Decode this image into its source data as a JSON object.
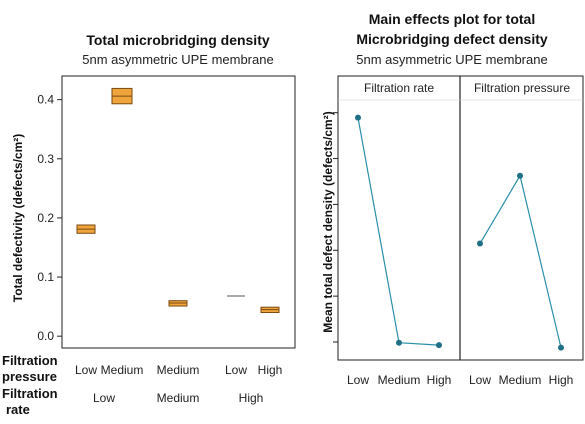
{
  "chart_data": [
    {
      "type": "box",
      "title": "Total microbridging density",
      "subtitle": "5nm asymmetric UPE membrane",
      "ylabel": "Total defectivity (defects/cm²)",
      "ylim": [
        0,
        0.42
      ],
      "yticks": [
        "0.0",
        "0.1",
        "0.2",
        "0.3",
        "0.4"
      ],
      "ytick_values": [
        0,
        0.1,
        0.2,
        0.3,
        0.4
      ],
      "row_labels": {
        "pressure": [
          "Filtration",
          "pressure"
        ],
        "rate": [
          "Filtration",
          "rate"
        ]
      },
      "pressure_labels": [
        "Low",
        "Medium",
        "Medium",
        "Low",
        "High"
      ],
      "rate_labels": [
        "Low",
        "Medium",
        "High"
      ],
      "boxes": [
        {
          "pressure": "Low",
          "rate": "Low",
          "q1": 0.174,
          "median": 0.181,
          "q3": 0.188
        },
        {
          "pressure": "Medium",
          "rate": "Low",
          "q1": 0.393,
          "median": 0.406,
          "q3": 0.419
        },
        {
          "pressure": "Medium",
          "rate": "Medium",
          "q1": 0.051,
          "median": 0.056,
          "q3": 0.06
        },
        {
          "pressure": "Low",
          "rate": "High",
          "q1": 0.068,
          "median": 0.068,
          "q3": 0.068
        },
        {
          "pressure": "High",
          "rate": "High",
          "q1": 0.04,
          "median": 0.045,
          "q3": 0.049
        }
      ],
      "box_color": "#f0a43c",
      "box_edge": "#7a4a10"
    },
    {
      "type": "line",
      "title_lines": [
        "Main effects plot for total",
        "Microbridging defect density"
      ],
      "subtitle": "5nm asymmetric UPE membrane",
      "ylabel": "Mean total defect density (defects/cm²)",
      "line_color": "#2a8fa8",
      "panels": [
        {
          "name": "Filtration rate",
          "categories": [
            "Low",
            "Medium",
            "High"
          ],
          "values": [
            0.96,
            0.03,
            0.02
          ]
        },
        {
          "name": "Filtration pressure",
          "categories": [
            "Low",
            "Medium",
            "High"
          ],
          "values": [
            0.44,
            0.72,
            0.01
          ]
        }
      ]
    }
  ]
}
